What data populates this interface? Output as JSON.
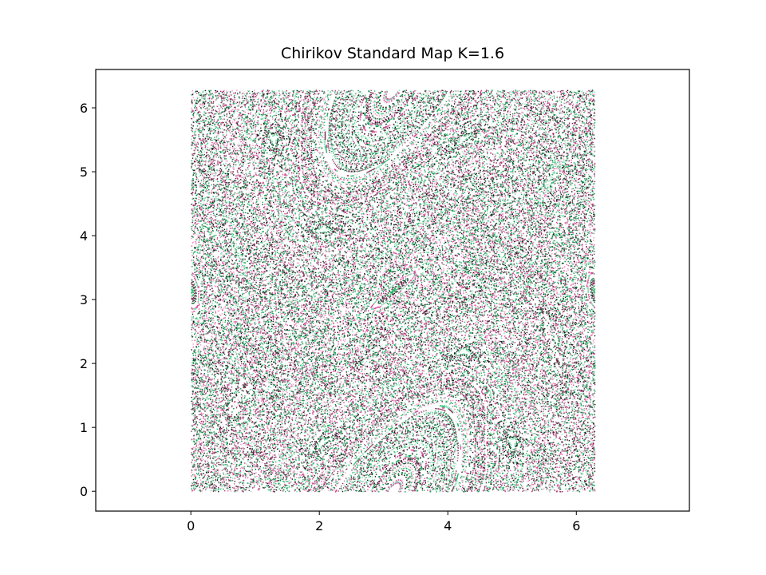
{
  "chart_data": {
    "type": "scatter",
    "title": "Chirikov Standard Map K=1.6",
    "K": 1.6,
    "xlabel": "",
    "ylabel": "",
    "xlim": [
      -1.48,
      7.76
    ],
    "ylim": [
      -0.31,
      6.6
    ],
    "x_ticks": [
      0,
      2,
      4,
      6
    ],
    "y_ticks": [
      0,
      1,
      2,
      3,
      4,
      5,
      6
    ],
    "x_tick_labels": [
      "0",
      "2",
      "4",
      "6"
    ],
    "y_tick_labels": [
      "0",
      "1",
      "2",
      "3",
      "4",
      "5",
      "6"
    ],
    "domain": {
      "x": [
        0,
        6.283
      ],
      "y": [
        0,
        6.283
      ]
    },
    "grid": false,
    "legend": "none",
    "colormap": [
      "#1a1a1a",
      "#8a2b5a",
      "#d9479b",
      "#f48fc4",
      "#e8e8e8",
      "#7be0b0",
      "#22b866",
      "#0a8a42"
    ],
    "structures": [
      {
        "name": "island around (pi, 0)",
        "cx": 3.14,
        "cy": 0.0,
        "wrap": true
      },
      {
        "name": "center resonance",
        "cx": 3.14,
        "cy": 3.14
      },
      {
        "name": "edge islands",
        "cx": 0.0,
        "cy": 3.14
      }
    ]
  }
}
